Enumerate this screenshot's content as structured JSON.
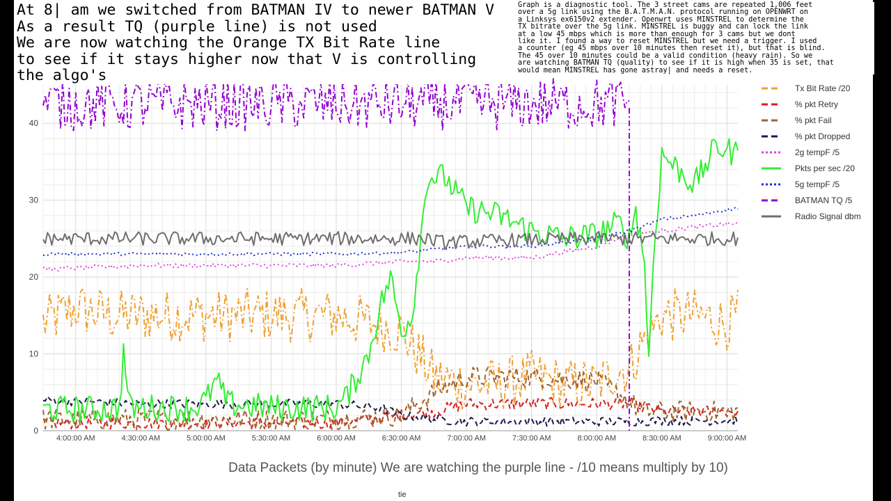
{
  "annotations": {
    "left_note": "At 8| am we switched from BATMAN IV to newer BATMAN V\nAs a result TQ (purple line) is not used\nWe are now watching the Orange TX Bit Rate line\nto see if it stays higher now that V is controlling\nthe algo's",
    "right_note": "Graph is a diagnostic tool. The 3 street cams are repeated 1,006 feet\nover a 5g link using the B.A.T.M.A.N. protocol running on OPENWRT on\na Linksys ex6150v2 extender. Openwrt uses MINSTREL to determine the\nTX bitrate over the 5g link. MINSTREL is buggy and can lock the link\nat a low 45 mbps which is more than enough for 3 cams but we dont\nlike it. I found a way to reset MINSTREL but we need a trigger. I used\na counter (eg 45 mbps over 10 minutes then reset it), but that is blind.\nThe 45 over 10 minutes could be a valid condition (heavy rain). So we\nare watching BATMAN TQ (quality) to see if it is high when 35 is set, that\nwould mean MINSTREL has gone astray| and needs a reset."
  },
  "caption": "Data Packets  (by minute) We are watching the purple line -  /10 means multiply by 10)",
  "footer": "tie",
  "chart_data": {
    "type": "line",
    "xlabel": "",
    "ylabel": "",
    "x_ticks": [
      "4:00:00 AM",
      "4:30:00 AM",
      "5:00:00 AM",
      "5:30:00 AM",
      "6:00:00 AM",
      "6:30:00 AM",
      "7:00:00 AM",
      "7:30:00 AM",
      "8:00:00 AM",
      "8:30:00 AM",
      "9:00:00 AM"
    ],
    "x_range_minutes": [
      -15,
      305
    ],
    "y_ticks": [
      0,
      10,
      20,
      30,
      40
    ],
    "ylim": [
      0,
      45
    ],
    "grid": true,
    "legend_position": "right",
    "event_marker": {
      "x_minutes": 255,
      "color": "#9400d3"
    },
    "series": [
      {
        "name": "Tx Bit Rate /20",
        "color": "#f0a030",
        "dash": "dashdot",
        "points": [
          [
            -15,
            14
          ],
          [
            0,
            16
          ],
          [
            15,
            15
          ],
          [
            30,
            15
          ],
          [
            45,
            15
          ],
          [
            60,
            15
          ],
          [
            75,
            15
          ],
          [
            90,
            15
          ],
          [
            105,
            15
          ],
          [
            120,
            15
          ],
          [
            135,
            14
          ],
          [
            150,
            13
          ],
          [
            155,
            11
          ],
          [
            165,
            7
          ],
          [
            180,
            6
          ],
          [
            195,
            6
          ],
          [
            210,
            7
          ],
          [
            225,
            6
          ],
          [
            240,
            6
          ],
          [
            250,
            8
          ],
          [
            255,
            8
          ],
          [
            260,
            11
          ],
          [
            270,
            15
          ],
          [
            285,
            15
          ],
          [
            300,
            14
          ],
          [
            305,
            15
          ]
        ],
        "noise": 3.5
      },
      {
        "name": "% pkt Retry",
        "color": "#d42020",
        "dash": "dash",
        "points": [
          [
            -15,
            1
          ],
          [
            30,
            1
          ],
          [
            60,
            1
          ],
          [
            90,
            1
          ],
          [
            120,
            1
          ],
          [
            150,
            2
          ],
          [
            165,
            2.5
          ],
          [
            180,
            3.5
          ],
          [
            210,
            3.5
          ],
          [
            240,
            3.5
          ],
          [
            255,
            3.5
          ],
          [
            270,
            2.5
          ],
          [
            305,
            2.5
          ]
        ],
        "noise": 0.8
      },
      {
        "name": "% pkt Fail",
        "color": "#a0622d",
        "dash": "dash",
        "points": [
          [
            -15,
            1.5
          ],
          [
            60,
            1.5
          ],
          [
            120,
            1.5
          ],
          [
            150,
            2
          ],
          [
            165,
            5
          ],
          [
            180,
            7
          ],
          [
            210,
            7
          ],
          [
            240,
            6.5
          ],
          [
            255,
            4
          ],
          [
            260,
            2.5
          ],
          [
            305,
            2.5
          ]
        ],
        "noise": 1.4
      },
      {
        "name": "% pkt Dropped",
        "color": "#1a1a4a",
        "dash": "dash",
        "points": [
          [
            -15,
            4
          ],
          [
            30,
            3.5
          ],
          [
            60,
            3.5
          ],
          [
            90,
            3.5
          ],
          [
            120,
            3.5
          ],
          [
            140,
            3
          ],
          [
            150,
            2
          ],
          [
            165,
            1.5
          ],
          [
            180,
            1.2
          ],
          [
            210,
            1.2
          ],
          [
            255,
            1.2
          ],
          [
            270,
            1.3
          ],
          [
            305,
            1.3
          ]
        ],
        "noise": 0.6
      },
      {
        "name": "2g tempF /5",
        "color": "#e040e0",
        "dash": "dot",
        "points": [
          [
            -15,
            21
          ],
          [
            30,
            21.5
          ],
          [
            60,
            21.5
          ],
          [
            90,
            21.5
          ],
          [
            120,
            21.5
          ],
          [
            150,
            22
          ],
          [
            165,
            22
          ],
          [
            180,
            22.5
          ],
          [
            210,
            22.5
          ],
          [
            240,
            24
          ],
          [
            255,
            25.5
          ],
          [
            270,
            26
          ],
          [
            285,
            26.5
          ],
          [
            305,
            27
          ]
        ],
        "noise": 0.3
      },
      {
        "name": "Pkts per sec /20",
        "color": "#33ee33",
        "dash": "solid",
        "points": [
          [
            -15,
            2.8
          ],
          [
            10,
            2.8
          ],
          [
            20,
            3
          ],
          [
            22,
            10
          ],
          [
            25,
            3
          ],
          [
            40,
            3
          ],
          [
            55,
            3
          ],
          [
            60,
            4
          ],
          [
            65,
            6.5
          ],
          [
            70,
            3.5
          ],
          [
            90,
            3
          ],
          [
            115,
            3
          ],
          [
            120,
            3
          ],
          [
            125,
            4.5
          ],
          [
            135,
            10
          ],
          [
            140,
            16
          ],
          [
            145,
            20
          ],
          [
            150,
            13
          ],
          [
            155,
            15
          ],
          [
            160,
            28
          ],
          [
            162,
            33
          ],
          [
            170,
            33
          ],
          [
            180,
            29
          ],
          [
            195,
            28
          ],
          [
            210,
            26
          ],
          [
            225,
            25
          ],
          [
            240,
            25.5
          ],
          [
            250,
            27
          ],
          [
            255,
            25
          ],
          [
            258,
            29
          ],
          [
            262,
            22
          ],
          [
            264,
            9
          ],
          [
            266,
            22
          ],
          [
            270,
            36
          ],
          [
            285,
            32
          ],
          [
            295,
            37
          ],
          [
            305,
            36
          ]
        ],
        "noise": 1.8
      },
      {
        "name": "5g tempF /5",
        "color": "#2030d0",
        "dash": "dot",
        "points": [
          [
            -15,
            23
          ],
          [
            60,
            23
          ],
          [
            120,
            23
          ],
          [
            150,
            23.2
          ],
          [
            180,
            24
          ],
          [
            210,
            24
          ],
          [
            240,
            25
          ],
          [
            255,
            26
          ],
          [
            270,
            27.5
          ],
          [
            285,
            28
          ],
          [
            305,
            29
          ]
        ],
        "noise": 0.2
      },
      {
        "name": "BATMAN TQ /5",
        "color": "#9400d3",
        "dash": "dashdot",
        "points": [
          [
            -15,
            42.5
          ],
          [
            30,
            42.5
          ],
          [
            60,
            42.5
          ],
          [
            90,
            42.5
          ],
          [
            120,
            42.5
          ],
          [
            150,
            42.5
          ],
          [
            180,
            42.5
          ],
          [
            210,
            42.5
          ],
          [
            240,
            42.5
          ],
          [
            255,
            42.5
          ]
        ],
        "noise": 3.5
      },
      {
        "name": "Radio Signal dbm",
        "color": "#6e6e6e",
        "dash": "solid",
        "points": [
          [
            -15,
            25
          ],
          [
            60,
            25
          ],
          [
            120,
            25
          ],
          [
            160,
            25
          ],
          [
            170,
            24.5
          ],
          [
            200,
            24.8
          ],
          [
            240,
            25
          ],
          [
            255,
            25
          ],
          [
            280,
            25
          ],
          [
            305,
            25
          ]
        ],
        "noise": 0.9
      }
    ]
  }
}
